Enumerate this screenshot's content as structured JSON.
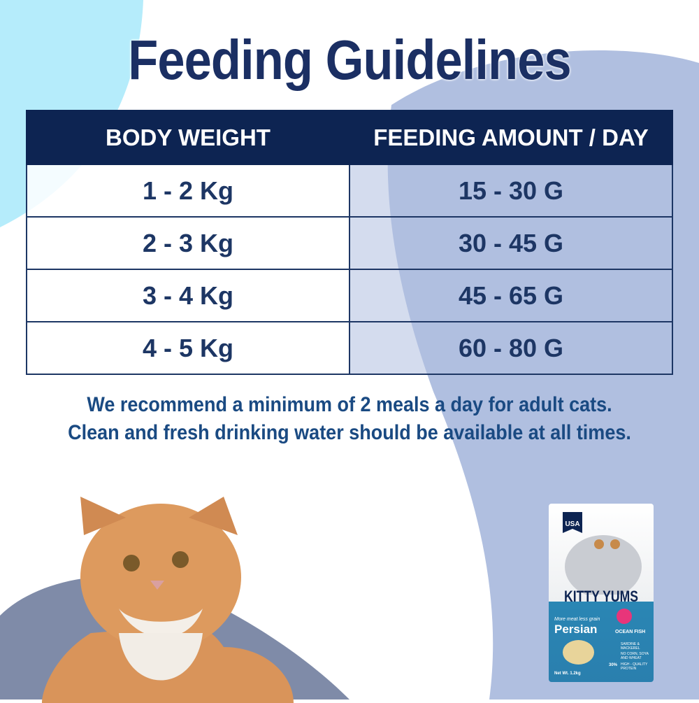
{
  "title": "Feeding Guidelines",
  "table": {
    "headers": [
      "BODY WEIGHT",
      "FEEDING AMOUNT / DAY"
    ],
    "rows": [
      [
        "1 - 2 Kg",
        "15 - 30 G"
      ],
      [
        "2 - 3 Kg",
        "30 - 45 G"
      ],
      [
        "3 - 4 Kg",
        "45 - 65 G"
      ],
      [
        "4 - 5 Kg",
        "60 - 80 G"
      ]
    ]
  },
  "notes": [
    "We recommend a minimum of 2 meals a day for adult cats.",
    "Clean and fresh drinking water should be available at all times."
  ],
  "package": {
    "badge": "USA",
    "brand": "KITTY YUMS",
    "tagline": "More meat less grain",
    "variant": "Persian",
    "flavor": "OCEAN FISH",
    "features": [
      "SARDINE & MACKEREL",
      "NO CORN, SOYA AND WHEAT",
      "HIGH - QUALITY PROTEIN"
    ],
    "protein": "30%",
    "net_weight": "Net Wt. 1.2kg"
  },
  "colors": {
    "navy": "#0d2452",
    "text": "#1d3664",
    "lavender": "#b0bfe0",
    "cyan": "#b5ecfb"
  }
}
